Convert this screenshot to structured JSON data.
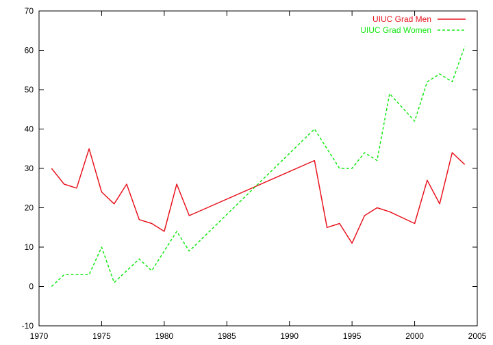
{
  "chart_data": {
    "type": "line",
    "title": "",
    "xlabel": "",
    "ylabel": "",
    "xlim": [
      1970,
      2005
    ],
    "ylim": [
      -10,
      70
    ],
    "x_ticks": [
      1970,
      1975,
      1980,
      1985,
      1990,
      1995,
      2000,
      2005
    ],
    "y_ticks": [
      -10,
      0,
      10,
      20,
      30,
      40,
      50,
      60,
      70
    ],
    "grid": false,
    "legend_position": "top-right",
    "series": [
      {
        "name": "UIUC Grad Men",
        "color": "#e8141e",
        "style": "solid",
        "x": [
          1971,
          1972,
          1973,
          1974,
          1975,
          1976,
          1977,
          1978,
          1979,
          1980,
          1981,
          1982,
          1992,
          1993,
          1994,
          1995,
          1996,
          1997,
          1998,
          2000,
          2001,
          2002,
          2003,
          2004
        ],
        "y": [
          30,
          26,
          25,
          35,
          24,
          21,
          26,
          17,
          16,
          14,
          26,
          18,
          32,
          15,
          16,
          11,
          18,
          20,
          19,
          16,
          27,
          21,
          34,
          31
        ]
      },
      {
        "name": "UIUC Grad Women",
        "color": "#14e814",
        "style": "dashed",
        "x": [
          1971,
          1972,
          1973,
          1974,
          1975,
          1976,
          1978,
          1979,
          1981,
          1982,
          1992,
          1994,
          1995,
          1996,
          1997,
          1998,
          2000,
          2001,
          2002,
          2003,
          2004
        ],
        "y": [
          0,
          3,
          3,
          3,
          10,
          1,
          7,
          4,
          14,
          9,
          40,
          30,
          30,
          34,
          32,
          49,
          42,
          52,
          54,
          52,
          61
        ]
      }
    ]
  }
}
